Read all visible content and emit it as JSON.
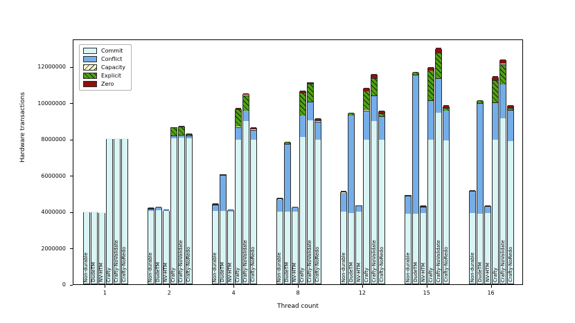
{
  "chart_data": {
    "type": "bar",
    "subtype": "stacked-grouped",
    "title": "",
    "xlabel": "Thread count",
    "ylabel": "Hardware transactions",
    "ylim": [
      0,
      13540000
    ],
    "yticks": [
      0,
      2000000,
      4000000,
      6000000,
      8000000,
      10000000,
      12000000
    ],
    "grid": false,
    "legend_position": "upper-left-inside",
    "legend": [
      {
        "label": "Commit",
        "color": "#d9f4f4",
        "hatch": "none"
      },
      {
        "label": "Conflict",
        "color": "#74aee8",
        "hatch": "none"
      },
      {
        "label": "Capacity",
        "color": "#fbfbd0",
        "hatch": "/"
      },
      {
        "label": "Explicit",
        "color": "#4fa412",
        "hatch": "\\"
      },
      {
        "label": "Zero",
        "color": "#8c1010",
        "hatch": "none"
      }
    ],
    "series_keys": [
      "commit",
      "conflict",
      "capacity",
      "explicit",
      "zero"
    ],
    "bar_variants": [
      "Non-durable",
      "DudeTM",
      "NV-HTM",
      "Crafty",
      "Crafty-NoValidate",
      "Crafty-NoRedo"
    ],
    "groups": [
      {
        "thread": "1",
        "bars": [
          {
            "label": "Non-durable",
            "commit": 3950000,
            "conflict": 0,
            "capacity": 0,
            "explicit": 0,
            "zero": 0
          },
          {
            "label": "DudeTM",
            "commit": 3980000,
            "conflict": 0,
            "capacity": 0,
            "explicit": 0,
            "zero": 0
          },
          {
            "label": "NV-HTM",
            "commit": 3940000,
            "conflict": 0,
            "capacity": 0,
            "explicit": 0,
            "zero": 0
          },
          {
            "label": "Crafty",
            "commit": 8000000,
            "conflict": 0,
            "capacity": 0,
            "explicit": 0,
            "zero": 0
          },
          {
            "label": "Crafty-NoValidate",
            "commit": 8020000,
            "conflict": 0,
            "capacity": 0,
            "explicit": 0,
            "zero": 0
          },
          {
            "label": "Crafty-NoRedo",
            "commit": 8000000,
            "conflict": 0,
            "capacity": 0,
            "explicit": 0,
            "zero": 0
          }
        ]
      },
      {
        "thread": "2",
        "bars": [
          {
            "label": "Non-durable",
            "commit": 4000000,
            "conflict": 130000,
            "capacity": 40000,
            "explicit": 0,
            "zero": 20000
          },
          {
            "label": "DudeTM",
            "commit": 4050000,
            "conflict": 180000,
            "capacity": 0,
            "explicit": 0,
            "zero": 0
          },
          {
            "label": "NV-HTM",
            "commit": 4000000,
            "conflict": 60000,
            "capacity": 0,
            "explicit": 0,
            "zero": 0
          },
          {
            "label": "Crafty",
            "commit": 8000000,
            "conflict": 150000,
            "capacity": 0,
            "explicit": 450000,
            "zero": 50000
          },
          {
            "label": "Crafty-NoValidate",
            "commit": 8050000,
            "conflict": 150000,
            "capacity": 0,
            "explicit": 450000,
            "zero": 50000
          },
          {
            "label": "Crafty-NoRedo",
            "commit": 8000000,
            "conflict": 150000,
            "capacity": 0,
            "explicit": 80000,
            "zero": 30000
          }
        ]
      },
      {
        "thread": "4",
        "bars": [
          {
            "label": "Non-durable",
            "commit": 4000000,
            "conflict": 350000,
            "capacity": 50000,
            "explicit": 0,
            "zero": 20000
          },
          {
            "label": "DudeTM",
            "commit": 4000000,
            "conflict": 2000000,
            "capacity": 0,
            "explicit": 50000,
            "zero": 0
          },
          {
            "label": "NV-HTM",
            "commit": 3950000,
            "conflict": 100000,
            "capacity": 0,
            "explicit": 0,
            "zero": 20000
          },
          {
            "label": "Crafty",
            "commit": 7950000,
            "conflict": 700000,
            "capacity": 0,
            "explicit": 950000,
            "zero": 60000
          },
          {
            "label": "Crafty-NoValidate",
            "commit": 8950000,
            "conflict": 600000,
            "capacity": 0,
            "explicit": 850000,
            "zero": 80000
          },
          {
            "label": "Crafty-NoRedo",
            "commit": 7950000,
            "conflict": 550000,
            "capacity": 0,
            "explicit": 50000,
            "zero": 60000
          }
        ]
      },
      {
        "thread": "8",
        "bars": [
          {
            "label": "Non-durable",
            "commit": 3950000,
            "conflict": 670000,
            "capacity": 80000,
            "explicit": 0,
            "zero": 20000
          },
          {
            "label": "DudeTM",
            "commit": 3950000,
            "conflict": 3750000,
            "capacity": 0,
            "explicit": 120000,
            "zero": 0
          },
          {
            "label": "NV-HTM",
            "commit": 3950000,
            "conflict": 250000,
            "capacity": 0,
            "explicit": 50000,
            "zero": 0
          },
          {
            "label": "Crafty",
            "commit": 8070000,
            "conflict": 1210000,
            "capacity": 0,
            "explicit": 1250000,
            "zero": 100000
          },
          {
            "label": "Crafty-NoValidate",
            "commit": 9020000,
            "conflict": 1020000,
            "capacity": 0,
            "explicit": 990000,
            "zero": 90000
          },
          {
            "label": "Crafty-NoRedo",
            "commit": 7950000,
            "conflict": 1000000,
            "capacity": 0,
            "explicit": 50000,
            "zero": 120000
          }
        ]
      },
      {
        "thread": "12",
        "bars": [
          {
            "label": "Non-durable",
            "commit": 3950000,
            "conflict": 1050000,
            "capacity": 60000,
            "explicit": 0,
            "zero": 20000
          },
          {
            "label": "DudeTM",
            "commit": 3880000,
            "conflict": 5400000,
            "capacity": 0,
            "explicit": 150000,
            "zero": 0
          },
          {
            "label": "NV-HTM",
            "commit": 3950000,
            "conflict": 330000,
            "capacity": 0,
            "explicit": 0,
            "zero": 50000
          },
          {
            "label": "Crafty",
            "commit": 7940000,
            "conflict": 1620000,
            "capacity": 0,
            "explicit": 1060000,
            "zero": 190000
          },
          {
            "label": "Crafty-NoValidate",
            "commit": 8960000,
            "conflict": 1400000,
            "capacity": 0,
            "explicit": 960000,
            "zero": 220000
          },
          {
            "label": "Crafty-NoRedo",
            "commit": 7940000,
            "conflict": 1300000,
            "capacity": 0,
            "explicit": 150000,
            "zero": 140000
          }
        ]
      },
      {
        "thread": "15",
        "bars": [
          {
            "label": "Non-durable",
            "commit": 3860000,
            "conflict": 1000000,
            "capacity": 0,
            "explicit": 0,
            "zero": 50000
          },
          {
            "label": "DudeTM",
            "commit": 3840000,
            "conflict": 7670000,
            "capacity": 0,
            "explicit": 170000,
            "zero": 0
          },
          {
            "label": "NV-HTM",
            "commit": 3900000,
            "conflict": 360000,
            "capacity": 0,
            "explicit": 0,
            "zero": 50000
          },
          {
            "label": "Crafty",
            "commit": 7940000,
            "conflict": 2160000,
            "capacity": 0,
            "explicit": 1660000,
            "zero": 190000
          },
          {
            "label": "Crafty-NoValidate",
            "commit": 9410000,
            "conflict": 1910000,
            "capacity": 0,
            "explicit": 1400000,
            "zero": 250000
          },
          {
            "label": "Crafty-NoRedo",
            "commit": 7880000,
            "conflict": 1660000,
            "capacity": 0,
            "explicit": 140000,
            "zero": 140000
          }
        ]
      },
      {
        "thread": "16",
        "bars": [
          {
            "label": "Non-durable",
            "commit": 3890000,
            "conflict": 1220000,
            "capacity": 0,
            "explicit": 0,
            "zero": 50000
          },
          {
            "label": "DudeTM",
            "commit": 3840000,
            "conflict": 6120000,
            "capacity": 0,
            "explicit": 150000,
            "zero": 0
          },
          {
            "label": "NV-HTM",
            "commit": 3900000,
            "conflict": 370000,
            "capacity": 0,
            "explicit": 0,
            "zero": 50000
          },
          {
            "label": "Crafty",
            "commit": 7940000,
            "conflict": 2060000,
            "capacity": 0,
            "explicit": 1210000,
            "zero": 210000
          },
          {
            "label": "Crafty-NoValidate",
            "commit": 9110000,
            "conflict": 1890000,
            "capacity": 0,
            "explicit": 1110000,
            "zero": 230000
          },
          {
            "label": "Crafty-NoRedo",
            "commit": 7840000,
            "conflict": 1730000,
            "capacity": 0,
            "explicit": 130000,
            "zero": 150000
          }
        ]
      }
    ]
  },
  "axes": {
    "ylabel": "Hardware transactions",
    "xlabel": "Thread count"
  }
}
